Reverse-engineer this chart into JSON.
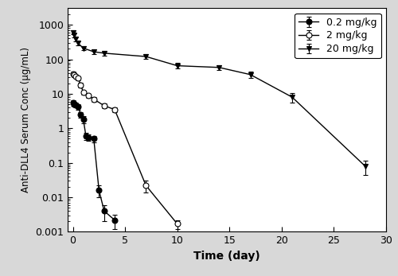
{
  "title": "",
  "xlabel": "Time (day)",
  "ylabel": "Anti-DLL4 Serum Conc (μg/mL)",
  "xlim": [
    -0.5,
    30
  ],
  "ylim": [
    0.001,
    3000
  ],
  "series": [
    {
      "label": "0.2 mg/kg",
      "marker": "o",
      "filled": true,
      "color": "black",
      "x": [
        0.05,
        0.1,
        0.25,
        0.5,
        0.75,
        1.0,
        1.25,
        1.5,
        2.0,
        2.5,
        3.0,
        4.0
      ],
      "y": [
        5.5,
        5.0,
        4.8,
        4.2,
        2.5,
        1.8,
        0.6,
        0.55,
        0.5,
        0.016,
        0.004,
        0.0022
      ],
      "yerr": [
        1.0,
        0.8,
        0.8,
        0.7,
        0.5,
        0.4,
        0.15,
        0.12,
        0.1,
        0.006,
        0.002,
        0.001
      ]
    },
    {
      "label": "2 mg/kg",
      "marker": "o",
      "filled": false,
      "color": "black",
      "x": [
        0.05,
        0.1,
        0.25,
        0.5,
        0.75,
        1.0,
        1.5,
        2.0,
        3.0,
        4.0,
        7.0,
        10.0
      ],
      "y": [
        38.0,
        35.0,
        32.0,
        28.0,
        18.0,
        11.0,
        9.0,
        7.0,
        4.5,
        3.5,
        0.022,
        0.0017
      ],
      "yerr": [
        5.0,
        4.5,
        4.0,
        3.5,
        2.5,
        1.5,
        1.2,
        1.0,
        0.7,
        0.6,
        0.008,
        0.0005
      ]
    },
    {
      "label": "20 mg/kg",
      "marker": "v",
      "filled": true,
      "color": "black",
      "x": [
        0.05,
        0.1,
        0.25,
        0.5,
        1.0,
        2.0,
        3.0,
        7.0,
        10.0,
        14.0,
        17.0,
        21.0,
        28.0
      ],
      "y": [
        600,
        500,
        380,
        290,
        210,
        165,
        150,
        120,
        65,
        58,
        36,
        8.0,
        0.08
      ],
      "yerr": [
        80,
        70,
        55,
        40,
        30,
        25,
        22,
        18,
        12,
        10,
        7,
        2.5,
        0.035
      ]
    }
  ],
  "xticks": [
    0,
    5,
    10,
    15,
    20,
    25,
    30
  ],
  "ytick_labels": [
    "0.001",
    "0.01",
    "0.1",
    "1",
    "10",
    "100",
    "1000"
  ],
  "ytick_vals": [
    0.001,
    0.01,
    0.1,
    1,
    10,
    100,
    1000
  ],
  "legend_loc": "upper right",
  "bg_color": "#ffffff",
  "fig_color": "#d8d8d8"
}
